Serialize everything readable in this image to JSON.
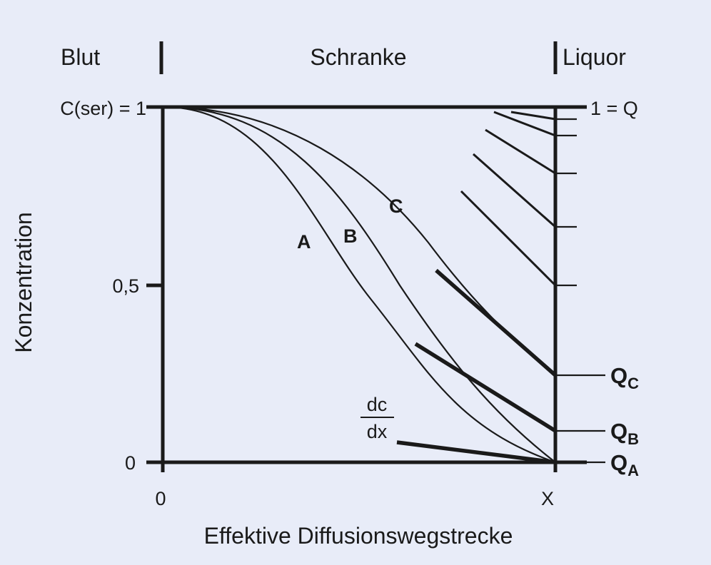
{
  "header": {
    "left_label": "Blut",
    "middle_label": "Schranke",
    "right_label": "Liquor"
  },
  "axes": {
    "y_title": "Konzentration",
    "x_title": "Effektive Diffusionswegstrecke",
    "y_top_label": "C(ser) = 1",
    "y_mid_label": "0,5",
    "y_zero_label": "0",
    "x_zero_label": "0",
    "x_end_label": "X",
    "right_top_label": "1 = Q"
  },
  "curves": [
    {
      "label": "A"
    },
    {
      "label": "B"
    },
    {
      "label": "C"
    }
  ],
  "derivative": {
    "numerator": "dc",
    "denominator": "dx"
  },
  "quotients": [
    {
      "letter": "Q",
      "sub": "C",
      "value": 0.25
    },
    {
      "letter": "Q",
      "sub": "B",
      "value": 0.09
    },
    {
      "letter": "Q",
      "sub": "A",
      "value": 0.0
    }
  ]
}
